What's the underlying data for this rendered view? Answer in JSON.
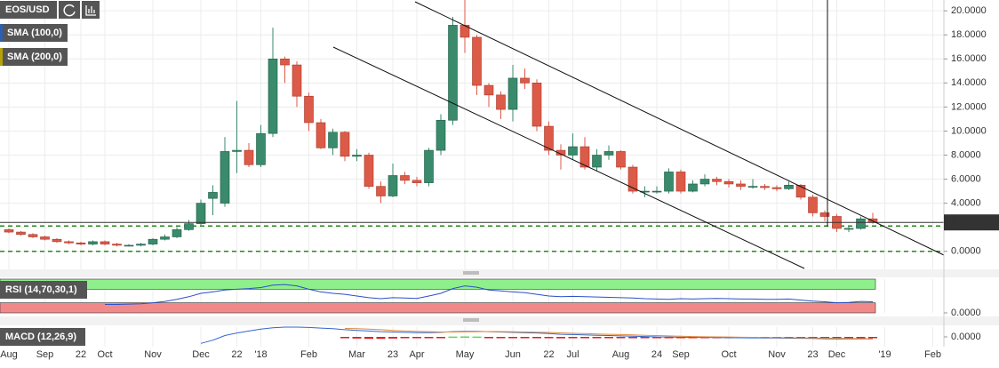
{
  "chart_data": [
    {
      "type": "candlestick",
      "title": "EOS/USD",
      "indicators": [
        {
          "name": "SMA (100,0)",
          "color": "#2f5fb3"
        },
        {
          "name": "SMA (200,0)",
          "color": "#b5a20a"
        }
      ],
      "categories": [
        "Aug",
        null,
        null,
        "Sep",
        null,
        null,
        "22",
        null,
        "Oct",
        null,
        null,
        null,
        "Nov",
        null,
        null,
        null,
        "Dec",
        null,
        null,
        "22",
        null,
        "'18",
        null,
        null,
        null,
        "Feb",
        null,
        null,
        null,
        "Mar",
        null,
        null,
        "23",
        null,
        "Apr",
        null,
        null,
        null,
        "May",
        null,
        null,
        null,
        "Jun",
        null,
        null,
        "22",
        null,
        "Jul",
        null,
        null,
        null,
        "Aug",
        null,
        null,
        "24",
        null,
        "Sep",
        null,
        null,
        null,
        "Oct",
        null,
        null,
        null,
        "Nov",
        null,
        null,
        "23",
        null,
        "Dec",
        null,
        null,
        null,
        "'19",
        null,
        null,
        null,
        "Feb"
      ],
      "open": [
        1.8,
        1.6,
        1.4,
        1.2,
        1.0,
        0.8,
        0.7,
        0.6,
        0.8,
        0.6,
        0.5,
        0.5,
        0.6,
        1.0,
        1.2,
        1.8,
        2.3,
        4.4,
        4.0,
        8.3,
        8.4,
        7.2,
        9.8,
        16.0,
        15.5,
        12.9,
        10.7,
        8.6,
        9.9,
        7.9,
        8.0,
        5.4,
        4.6,
        6.3,
        5.9,
        5.7,
        8.4,
        10.9,
        18.8,
        17.8,
        13.8,
        13.0,
        11.8,
        14.4,
        14.0,
        10.4,
        8.4,
        8.0,
        8.7,
        7.0,
        8.0,
        8.3,
        7.0,
        5.0,
        5.0,
        5.0,
        6.6,
        5.0,
        5.6,
        6.0,
        5.8,
        5.6,
        5.4,
        5.4,
        5.3,
        5.2,
        5.5,
        4.5,
        3.2,
        2.9,
        1.9,
        1.9,
        2.7,
        null,
        null,
        null,
        null,
        null
      ],
      "high": [
        1.9,
        1.7,
        1.5,
        1.3,
        1.1,
        0.9,
        0.8,
        0.9,
        0.9,
        0.7,
        0.6,
        0.7,
        1.1,
        1.4,
        2.0,
        2.6,
        4.3,
        5.5,
        9.5,
        12.5,
        9.0,
        10.5,
        18.6,
        16.2,
        15.8,
        13.2,
        11.0,
        10.2,
        10.0,
        8.5,
        8.2,
        5.8,
        7.3,
        6.6,
        6.2,
        8.6,
        11.4,
        19.5,
        20.9,
        18.0,
        14.0,
        13.3,
        15.5,
        15.2,
        14.3,
        10.8,
        8.9,
        9.8,
        9.5,
        8.5,
        8.8,
        8.4,
        7.2,
        5.4,
        5.4,
        6.9,
        6.8,
        5.9,
        6.4,
        6.2,
        6.0,
        5.9,
        6.0,
        5.6,
        5.5,
        5.8,
        5.6,
        4.7,
        3.4,
        3.1,
        2.1,
        2.9,
        3.2,
        null,
        null,
        null,
        null,
        null
      ],
      "low": [
        1.5,
        1.3,
        1.1,
        0.9,
        0.7,
        0.6,
        0.5,
        0.5,
        0.5,
        0.4,
        0.4,
        0.4,
        0.5,
        0.9,
        1.1,
        1.7,
        2.1,
        3.0,
        3.7,
        6.5,
        7.0,
        7.0,
        9.5,
        14.0,
        12.0,
        10.0,
        8.5,
        8.0,
        7.5,
        7.5,
        5.2,
        4.0,
        4.5,
        5.6,
        5.4,
        5.4,
        8.0,
        10.5,
        16.5,
        13.0,
        12.0,
        11.0,
        10.8,
        13.5,
        10.0,
        8.0,
        6.8,
        7.6,
        6.8,
        6.7,
        7.6,
        6.8,
        4.8,
        4.5,
        4.8,
        4.8,
        4.8,
        4.9,
        5.4,
        5.5,
        5.3,
        5.1,
        5.2,
        5.1,
        5.0,
        5.1,
        4.3,
        2.9,
        2.5,
        1.6,
        1.6,
        1.8,
        2.3,
        null,
        null,
        null,
        null,
        null
      ],
      "close": [
        1.6,
        1.4,
        1.2,
        1.0,
        0.8,
        0.7,
        0.6,
        0.8,
        0.6,
        0.5,
        0.5,
        0.6,
        1.0,
        1.2,
        1.8,
        2.3,
        4.0,
        4.9,
        8.3,
        8.4,
        7.2,
        9.8,
        16.0,
        15.5,
        12.9,
        10.7,
        8.6,
        9.9,
        7.9,
        8.0,
        5.4,
        4.6,
        6.3,
        5.9,
        5.7,
        8.4,
        10.9,
        18.8,
        17.8,
        13.8,
        13.0,
        11.8,
        14.4,
        14.0,
        10.4,
        8.4,
        8.0,
        8.7,
        7.0,
        8.0,
        8.3,
        7.0,
        5.0,
        5.0,
        5.0,
        6.6,
        5.0,
        5.6,
        6.0,
        5.8,
        5.6,
        5.4,
        5.4,
        5.3,
        5.2,
        5.5,
        4.5,
        3.2,
        2.9,
        1.9,
        1.9,
        2.7,
        2.4,
        null,
        null,
        null,
        null,
        null
      ],
      "up_color": "#3a8a6c",
      "down_color": "#dc5a48",
      "ylim": [
        -1.5,
        20.9
      ],
      "yticks": [
        {
          "value": 0,
          "label": "0.0000"
        },
        {
          "value": 2,
          "label": "2.0000"
        },
        {
          "value": 4,
          "label": "4.0000"
        },
        {
          "value": 6,
          "label": "6.0000"
        },
        {
          "value": 8,
          "label": "8.0000"
        },
        {
          "value": 10,
          "label": "10.0000"
        },
        {
          "value": 12,
          "label": "12.0000"
        },
        {
          "value": 14,
          "label": "14.0000"
        },
        {
          "value": 16,
          "label": "16.0000"
        },
        {
          "value": 18,
          "label": "18.0000"
        },
        {
          "value": 20,
          "label": "20.0000"
        }
      ],
      "last_price": {
        "value": 2.4022,
        "label": "2.402200"
      },
      "levels": [
        2.1,
        0
      ],
      "grid": true
    },
    {
      "type": "line",
      "title": "RSI (14,70,30,1)",
      "color": "#2b50c8",
      "values": [
        null,
        null,
        null,
        null,
        null,
        null,
        null,
        null,
        25,
        25,
        26,
        27,
        30,
        34,
        40,
        48,
        58,
        62,
        68,
        70,
        72,
        75,
        82,
        84,
        80,
        70,
        62,
        58,
        55,
        50,
        45,
        42,
        45,
        44,
        43,
        50,
        58,
        72,
        80,
        76,
        68,
        65,
        62,
        60,
        55,
        50,
        48,
        49,
        48,
        47,
        46,
        45,
        44,
        42,
        41,
        40,
        42,
        41,
        42,
        43,
        42,
        41,
        41,
        40,
        40,
        41,
        38,
        35,
        33,
        30,
        31,
        34,
        33,
        null,
        null,
        null,
        null,
        null
      ],
      "ylim": [
        0,
        100
      ],
      "yticks": [
        {
          "value": 0,
          "label": "0.0000"
        }
      ],
      "overbought": 70,
      "oversold": 30,
      "overbought_color": "#8ef08a",
      "oversold_color": "#f08a8a"
    },
    {
      "type": "macd",
      "title": "MACD (12,26,9)",
      "macd_color": "#3366cc",
      "signal_color": "#e08a3a",
      "hist_up_color": "#5cd65c",
      "hist_down_color": "#e01e1e",
      "macd": [
        null,
        null,
        null,
        null,
        null,
        null,
        null,
        null,
        null,
        null,
        null,
        null,
        null,
        null,
        null,
        null,
        -1.0,
        -0.5,
        0.2,
        0.6,
        0.9,
        1.2,
        1.4,
        1.5,
        1.5,
        1.45,
        1.35,
        1.25,
        1.1,
        1.0,
        0.9,
        0.8,
        0.75,
        0.7,
        0.65,
        0.65,
        0.7,
        0.8,
        0.85,
        0.85,
        0.8,
        0.75,
        0.7,
        0.65,
        0.6,
        0.5,
        0.4,
        0.35,
        0.3,
        0.25,
        0.2,
        0.15,
        0.1,
        0.05,
        0.0,
        -0.02,
        -0.05,
        -0.07,
        -0.08,
        -0.1,
        -0.12,
        -0.14,
        -0.15,
        -0.17,
        -0.18,
        -0.2,
        -0.22,
        -0.25,
        -0.28,
        -0.3,
        -0.32,
        -0.32,
        -0.3,
        null,
        null,
        null,
        null,
        null
      ],
      "signal": [
        null,
        null,
        null,
        null,
        null,
        null,
        null,
        null,
        null,
        null,
        null,
        null,
        null,
        null,
        null,
        null,
        null,
        null,
        null,
        null,
        null,
        null,
        null,
        null,
        null,
        null,
        null,
        null,
        1.3,
        1.25,
        1.2,
        1.1,
        1.0,
        0.9,
        0.85,
        0.8,
        0.75,
        0.75,
        0.78,
        0.8,
        0.82,
        0.8,
        0.78,
        0.75,
        0.72,
        0.68,
        0.62,
        0.55,
        0.5,
        0.45,
        0.4,
        0.35,
        0.3,
        0.25,
        0.2,
        0.15,
        0.1,
        0.05,
        0.02,
        0.0,
        -0.02,
        -0.05,
        -0.07,
        -0.09,
        -0.11,
        -0.13,
        -0.15,
        -0.17,
        -0.19,
        -0.21,
        -0.24,
        -0.26,
        -0.28,
        null,
        null,
        null,
        null,
        null
      ],
      "histogram": [
        null,
        null,
        null,
        null,
        null,
        null,
        null,
        null,
        null,
        null,
        null,
        null,
        null,
        null,
        null,
        null,
        null,
        null,
        null,
        null,
        null,
        null,
        null,
        null,
        null,
        null,
        null,
        null,
        -0.2,
        -0.25,
        -0.3,
        -0.3,
        -0.25,
        -0.2,
        -0.2,
        -0.15,
        -0.05,
        0.05,
        0.07,
        0.05,
        -0.02,
        -0.05,
        -0.08,
        -0.1,
        -0.12,
        -0.18,
        -0.22,
        -0.2,
        -0.2,
        -0.2,
        -0.2,
        -0.2,
        -0.2,
        -0.2,
        -0.2,
        -0.17,
        -0.15,
        -0.12,
        -0.1,
        -0.1,
        -0.1,
        -0.12,
        -0.13,
        -0.15,
        -0.16,
        -0.17,
        -0.18,
        -0.2,
        -0.2,
        -0.2,
        -0.19,
        -0.16,
        -0.13,
        null,
        null,
        null,
        null,
        null
      ],
      "ylim": [
        -1.5,
        1.5
      ],
      "yticks": [
        {
          "value": 0,
          "label": "0.0000"
        }
      ]
    }
  ]
}
